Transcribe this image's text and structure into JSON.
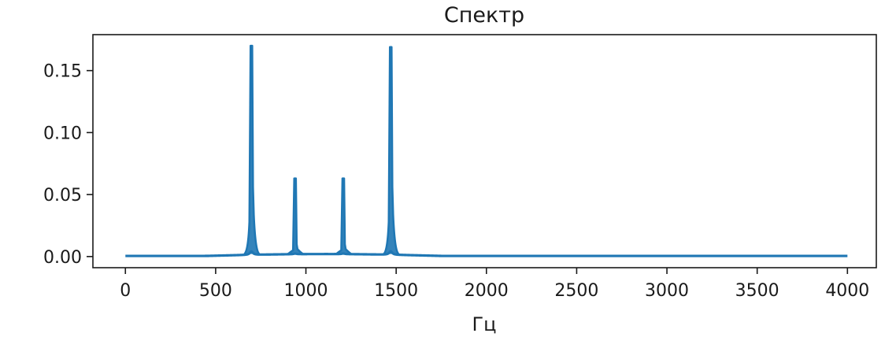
{
  "chart_data": {
    "type": "line",
    "title": "Спектр",
    "xlabel": "Гц",
    "ylabel": "",
    "xlim": [
      -180,
      4160
    ],
    "ylim": [
      -0.009,
      0.179
    ],
    "grid": false,
    "legend": "none",
    "xticks": [
      0,
      500,
      1000,
      1500,
      2000,
      2500,
      3000,
      3500,
      4000
    ],
    "xtick_labels": [
      "0",
      "500",
      "1000",
      "1500",
      "2000",
      "2500",
      "3000",
      "3500",
      "4000"
    ],
    "yticks": [
      0.0,
      0.05,
      0.1,
      0.15
    ],
    "ytick_labels": [
      "0.00",
      "0.05",
      "0.10",
      "0.15"
    ],
    "series": [
      {
        "color": "#1f77b4",
        "x_range": [
          0,
          4000
        ],
        "baseline": 0.0005,
        "peaks": [
          {
            "freq": 698,
            "amplitude": 0.17,
            "shoulder": 0.056
          },
          {
            "freq": 940,
            "amplitude": 0.063,
            "shoulder": 0.01
          },
          {
            "freq": 1207,
            "amplitude": 0.063,
            "shoulder": 0.01
          },
          {
            "freq": 1470,
            "amplitude": 0.169,
            "shoulder": 0.056
          }
        ]
      }
    ]
  }
}
